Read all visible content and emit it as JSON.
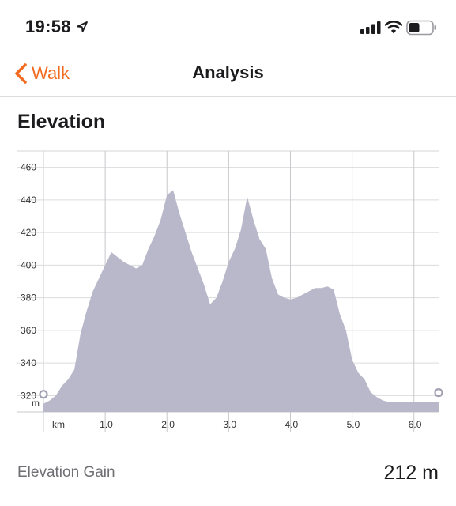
{
  "status_bar": {
    "time": "19:58"
  },
  "nav": {
    "back_label": "Walk",
    "title": "Analysis"
  },
  "section": {
    "title": "Elevation"
  },
  "chart_data": {
    "type": "area",
    "xlabel": "km",
    "ylabel": "m",
    "xlim": [
      0,
      6.4
    ],
    "ylim": [
      310,
      470
    ],
    "x_ticks": [
      "1.0",
      "2.0",
      "3.0",
      "4.0",
      "5.0",
      "6.0"
    ],
    "y_ticks": [
      "320",
      "340",
      "360",
      "380",
      "400",
      "420",
      "440",
      "460"
    ],
    "fill_color": "#b9b8ca",
    "grid": true,
    "x": [
      0.0,
      0.1,
      0.2,
      0.3,
      0.4,
      0.5,
      0.6,
      0.7,
      0.8,
      0.9,
      1.0,
      1.1,
      1.2,
      1.3,
      1.4,
      1.5,
      1.6,
      1.7,
      1.8,
      1.9,
      2.0,
      2.1,
      2.2,
      2.3,
      2.4,
      2.5,
      2.6,
      2.7,
      2.8,
      2.9,
      3.0,
      3.1,
      3.2,
      3.3,
      3.4,
      3.5,
      3.6,
      3.7,
      3.8,
      3.9,
      4.0,
      4.1,
      4.2,
      4.3,
      4.4,
      4.5,
      4.6,
      4.7,
      4.8,
      4.9,
      5.0,
      5.1,
      5.2,
      5.3,
      5.4,
      5.5,
      5.6,
      5.7,
      5.8,
      5.9,
      6.0,
      6.1,
      6.4
    ],
    "values": [
      315,
      317,
      320,
      326,
      330,
      336,
      358,
      372,
      384,
      392,
      400,
      408,
      405,
      402,
      400,
      398,
      400,
      410,
      418,
      428,
      443,
      446,
      432,
      420,
      408,
      398,
      388,
      376,
      380,
      390,
      402,
      410,
      422,
      442,
      428,
      416,
      410,
      392,
      382,
      380,
      379,
      380,
      382,
      384,
      386,
      386,
      387,
      385,
      370,
      360,
      342,
      334,
      330,
      322,
      319,
      317,
      316,
      316,
      316,
      316,
      316,
      316,
      316
    ]
  },
  "stats": {
    "gain_label": "Elevation Gain",
    "gain_value": "212 m"
  }
}
